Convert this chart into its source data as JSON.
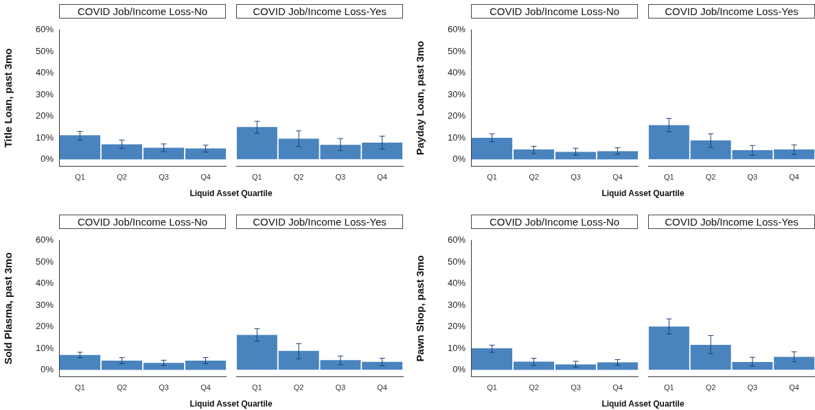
{
  "chart_data": [
    {
      "type": "bar",
      "title": "COVID Job/Income Loss-No",
      "ylabel": "Title Loan, past 3mo",
      "xlabel": "Liquid Asset Quartile",
      "categories": [
        "Q1",
        "Q2",
        "Q3",
        "Q4"
      ],
      "values": [
        11.2,
        7.0,
        5.4,
        5.1
      ],
      "errors": [
        [
          9.0,
          13.0
        ],
        [
          5.1,
          9.0
        ],
        [
          3.6,
          7.2
        ],
        [
          3.4,
          6.6
        ]
      ],
      "color": "#4a84bf",
      "ylim": [
        -3,
        60
      ],
      "yticks": [
        {
          "value": 0,
          "label": "0%"
        },
        {
          "value": 10,
          "label": "10%"
        },
        {
          "value": 20,
          "label": "20%"
        },
        {
          "value": 30,
          "label": "30%"
        },
        {
          "value": 40,
          "label": "40%"
        },
        {
          "value": 50,
          "label": "50%"
        },
        {
          "value": 60,
          "label": "60%"
        }
      ]
    },
    {
      "type": "bar",
      "title": "COVID Job/Income Loss-Yes",
      "categories": [
        "Q1",
        "Q2",
        "Q3",
        "Q4"
      ],
      "values": [
        14.5,
        9.3,
        6.5,
        7.5
      ],
      "errors": [
        [
          11.7,
          17.1
        ],
        [
          5.7,
          12.8
        ],
        [
          3.9,
          9.3
        ],
        [
          4.5,
          10.4
        ]
      ],
      "color": "#4a84bf",
      "ylim": [
        -3,
        60
      ],
      "tick_labels": "x"
    },
    {
      "type": "bar",
      "title": "COVID Job/Income Loss-No",
      "ylabel": "Payday Loan, past 3mo",
      "xlabel": "Liquid Asset Quartile",
      "categories": [
        "Q1",
        "Q2",
        "Q3",
        "Q4"
      ],
      "values": [
        10.0,
        4.6,
        3.5,
        3.8
      ],
      "errors": [
        [
          8.2,
          11.9
        ],
        [
          2.7,
          6.1
        ],
        [
          2.0,
          5.2
        ],
        [
          2.4,
          5.4
        ]
      ],
      "color": "#4a84bf",
      "ylim": [
        -3,
        60
      ],
      "yticks": [
        {
          "value": 0,
          "label": "0%"
        },
        {
          "value": 10,
          "label": "10%"
        },
        {
          "value": 20,
          "label": "20%"
        },
        {
          "value": 30,
          "label": "30%"
        },
        {
          "value": 40,
          "label": "40%"
        },
        {
          "value": 50,
          "label": "50%"
        },
        {
          "value": 60,
          "label": "60%"
        }
      ]
    },
    {
      "type": "bar",
      "title": "COVID Job/Income Loss-Yes",
      "categories": [
        "Q1",
        "Q2",
        "Q3",
        "Q4"
      ],
      "values": [
        15.4,
        8.5,
        4.1,
        4.4
      ],
      "errors": [
        [
          12.4,
          18.4
        ],
        [
          5.3,
          11.5
        ],
        [
          1.8,
          6.2
        ],
        [
          2.2,
          6.5
        ]
      ],
      "color": "#4a84bf",
      "ylim": [
        -3,
        60
      ],
      "tick_labels": "x"
    },
    {
      "type": "bar",
      "title": "COVID Job/Income Loss-No",
      "ylabel": "Sold Plasma, past 3mo",
      "xlabel": "Liquid Asset Quartile",
      "categories": [
        "Q1",
        "Q2",
        "Q3",
        "Q4"
      ],
      "values": [
        6.9,
        4.3,
        3.3,
        4.3
      ],
      "errors": [
        [
          5.6,
          8.2
        ],
        [
          2.9,
          5.7
        ],
        [
          2.0,
          4.5
        ],
        [
          2.9,
          5.7
        ]
      ],
      "color": "#4a84bf",
      "ylim": [
        -3,
        60
      ],
      "yticks": [
        {
          "value": 0,
          "label": "0%"
        },
        {
          "value": 10,
          "label": "10%"
        },
        {
          "value": 20,
          "label": "20%"
        },
        {
          "value": 30,
          "label": "30%"
        },
        {
          "value": 40,
          "label": "40%"
        },
        {
          "value": 50,
          "label": "50%"
        },
        {
          "value": 60,
          "label": "60%"
        }
      ]
    },
    {
      "type": "bar",
      "title": "COVID Job/Income Loss-Yes",
      "categories": [
        "Q1",
        "Q2",
        "Q3",
        "Q4"
      ],
      "values": [
        15.7,
        8.5,
        4.3,
        3.6
      ],
      "errors": [
        [
          12.9,
          18.5
        ],
        [
          4.9,
          11.8
        ],
        [
          2.3,
          6.2
        ],
        [
          1.8,
          5.2
        ]
      ],
      "color": "#4a84bf",
      "ylim": [
        -3,
        60
      ],
      "tick_labels": "x"
    },
    {
      "type": "bar",
      "title": "COVID Job/Income Loss-No",
      "ylabel": "Pawn Shop, past 3mo",
      "xlabel": "Liquid Asset Quartile",
      "categories": [
        "Q1",
        "Q2",
        "Q3",
        "Q4"
      ],
      "values": [
        10.0,
        3.8,
        2.6,
        3.5
      ],
      "errors": [
        [
          8.1,
          11.5
        ],
        [
          2.1,
          5.4
        ],
        [
          1.3,
          4.0
        ],
        [
          2.1,
          4.8
        ]
      ],
      "color": "#4a84bf",
      "ylim": [
        -3,
        60
      ],
      "yticks": [
        {
          "value": 0,
          "label": "0%"
        },
        {
          "value": 10,
          "label": "10%"
        },
        {
          "value": 20,
          "label": "20%"
        },
        {
          "value": 30,
          "label": "30%"
        },
        {
          "value": 40,
          "label": "40%"
        },
        {
          "value": 50,
          "label": "50%"
        },
        {
          "value": 60,
          "label": "60%"
        }
      ]
    },
    {
      "type": "bar",
      "title": "COVID Job/Income Loss-Yes",
      "categories": [
        "Q1",
        "Q2",
        "Q3",
        "Q4"
      ],
      "values": [
        19.5,
        11.2,
        3.5,
        5.8
      ],
      "errors": [
        [
          16.1,
          22.9
        ],
        [
          7.3,
          15.4
        ],
        [
          1.6,
          5.6
        ],
        [
          3.6,
          8.1
        ]
      ],
      "color": "#4a84bf",
      "ylim": [
        -3,
        60
      ],
      "tick_labels": "x"
    }
  ]
}
